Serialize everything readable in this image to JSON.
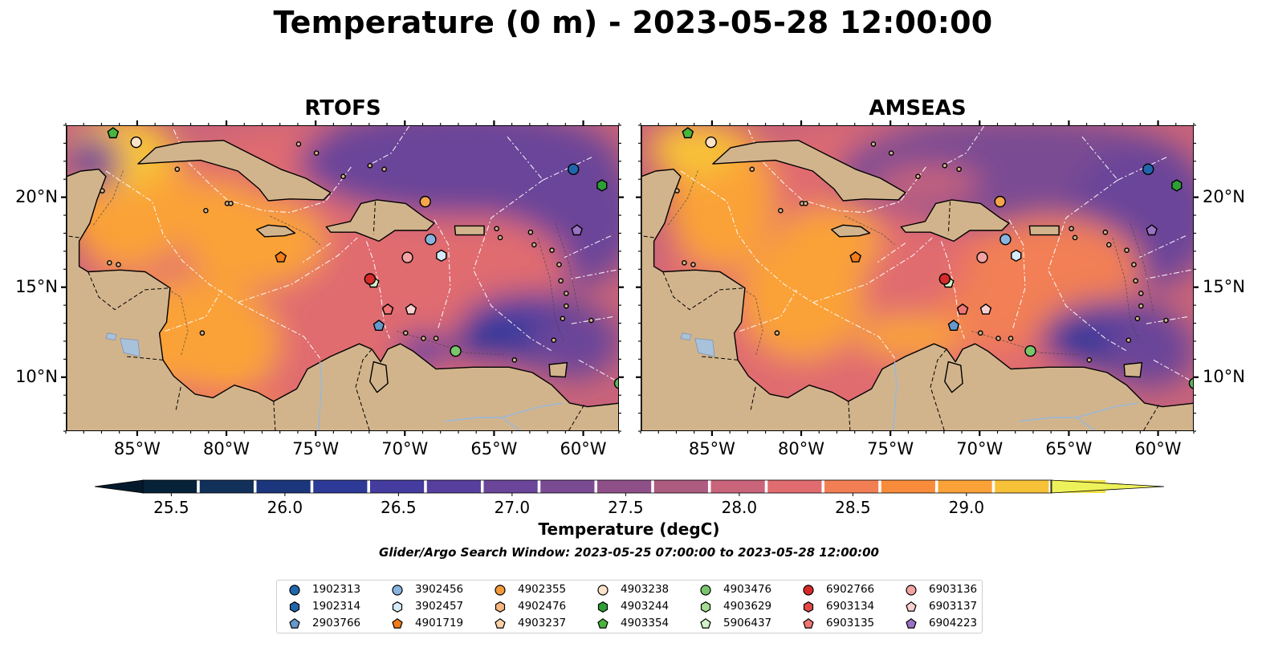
{
  "title": "Temperature (0 m) - 2023-05-28 12:00:00",
  "panels": [
    {
      "id": "rtofs",
      "title": "RTOFS"
    },
    {
      "id": "amseas",
      "title": "AMSEAS"
    }
  ],
  "map_extent": {
    "lon_min": -89,
    "lon_max": -58,
    "lat_min": 7,
    "lat_max": 24
  },
  "lon_ticks": [
    {
      "value": -85,
      "label": "85°W"
    },
    {
      "value": -80,
      "label": "80°W"
    },
    {
      "value": -75,
      "label": "75°W"
    },
    {
      "value": -70,
      "label": "70°W"
    },
    {
      "value": -65,
      "label": "65°W"
    },
    {
      "value": -60,
      "label": "60°W"
    }
  ],
  "lat_ticks": [
    {
      "value": 20,
      "label": "20°N"
    },
    {
      "value": 15,
      "label": "15°N"
    },
    {
      "value": 10,
      "label": "10°N"
    }
  ],
  "colorbar": {
    "label": "Temperature (degC)",
    "min": 25.375,
    "max": 29.375,
    "step": 0.25,
    "extend": "both",
    "ticks": [
      25.5,
      26.0,
      26.5,
      27.0,
      27.5,
      28.0,
      28.5,
      29.0
    ],
    "tick_labels": [
      "25.5",
      "26.0",
      "26.5",
      "27.0",
      "27.5",
      "28.0",
      "28.5",
      "29.0"
    ],
    "colors": [
      "#062238",
      "#11305a",
      "#1c367d",
      "#2d3996",
      "#443c9e",
      "#573f9e",
      "#6a4599",
      "#7a4b93",
      "#8f5089",
      "#ad5b80",
      "#c9647a",
      "#e06c6f",
      "#f27f54",
      "#f98c3b",
      "#faa238",
      "#f8c238",
      "#f2e34a"
    ],
    "under_color": "#041a2c",
    "over_color": "#eef25a"
  },
  "colors": {
    "land": "#d2b48c",
    "lake": "#a9c2dc",
    "masked_ocean": "#9ab8e2",
    "warm_ocean": "#e8f255"
  },
  "search_window": "Glider/Argo Search Window: 2023-05-25 07:00:00 to 2023-05-28 12:00:00",
  "floats": [
    {
      "id": "1902313",
      "marker": "circle",
      "color": "#2166ac",
      "lon": -60.6,
      "lat": 21.6
    },
    {
      "id": "1902314",
      "marker": "hexagon",
      "color": "#2166ac",
      "lon": null,
      "lat": null
    },
    {
      "id": "2903766",
      "marker": "pentagon",
      "color": "#6699cc",
      "lon": -71.5,
      "lat": 12.9
    },
    {
      "id": "3902456",
      "marker": "circle",
      "color": "#87b5e0",
      "lon": -68.6,
      "lat": 17.7
    },
    {
      "id": "3902457",
      "marker": "hexagon",
      "color": "#d6eaf8",
      "lon": -68.0,
      "lat": 16.8
    },
    {
      "id": "4901719",
      "marker": "pentagon",
      "color": "#f07c1a",
      "lon": -77.0,
      "lat": 16.7
    },
    {
      "id": "4902355",
      "marker": "circle",
      "color": "#f39a3a",
      "lon": null,
      "lat": null
    },
    {
      "id": "4902476",
      "marker": "hexagon",
      "color": "#f6b77e",
      "lon": null,
      "lat": null
    },
    {
      "id": "4903237",
      "marker": "pentagon",
      "color": "#fad2a8",
      "lon": null,
      "lat": null
    },
    {
      "id": "4903238",
      "marker": "circle",
      "color": "#fde3c8",
      "lon": -85.1,
      "lat": 23.1
    },
    {
      "id": "4903244",
      "marker": "hexagon",
      "color": "#2e9e36",
      "lon": -59.0,
      "lat": 20.7
    },
    {
      "id": "4903354",
      "marker": "pentagon",
      "color": "#49b53c",
      "lon": -86.4,
      "lat": 23.6
    },
    {
      "id": "4903476",
      "marker": "circle",
      "color": "#78c66b",
      "lon": -67.2,
      "lat": 11.5
    },
    {
      "id": "4903629",
      "marker": "hexagon",
      "color": "#a4dc92",
      "lon": null,
      "lat": null
    },
    {
      "id": "5906437",
      "marker": "pentagon",
      "color": "#d4f2c8",
      "lon": -71.8,
      "lat": 15.3
    },
    {
      "id": "6902766",
      "marker": "circle",
      "color": "#d62a2a",
      "lon": -72.0,
      "lat": 15.5
    },
    {
      "id": "6903134",
      "marker": "hexagon",
      "color": "#e34848",
      "lon": null,
      "lat": null
    },
    {
      "id": "6903135",
      "marker": "pentagon",
      "color": "#ee7575",
      "lon": -71.0,
      "lat": 13.8
    },
    {
      "id": "6903136",
      "marker": "circle",
      "color": "#f4a3a3",
      "lon": -69.9,
      "lat": 16.7
    },
    {
      "id": "6903137",
      "marker": "pentagon",
      "color": "#fbd0d0",
      "lon": -69.7,
      "lat": 13.8
    },
    {
      "id": "6904223",
      "marker": "pentagon",
      "color": "#9a72c4",
      "lon": -60.4,
      "lat": 18.2
    },
    {
      "id": "extra-circle",
      "marker": "circle",
      "color": "#f5a64a",
      "lon": -68.9,
      "lat": 19.8
    },
    {
      "id": "extra-south",
      "marker": "circle",
      "color": "#5fb85a",
      "lon": -58.0,
      "lat": 9.7
    }
  ]
}
